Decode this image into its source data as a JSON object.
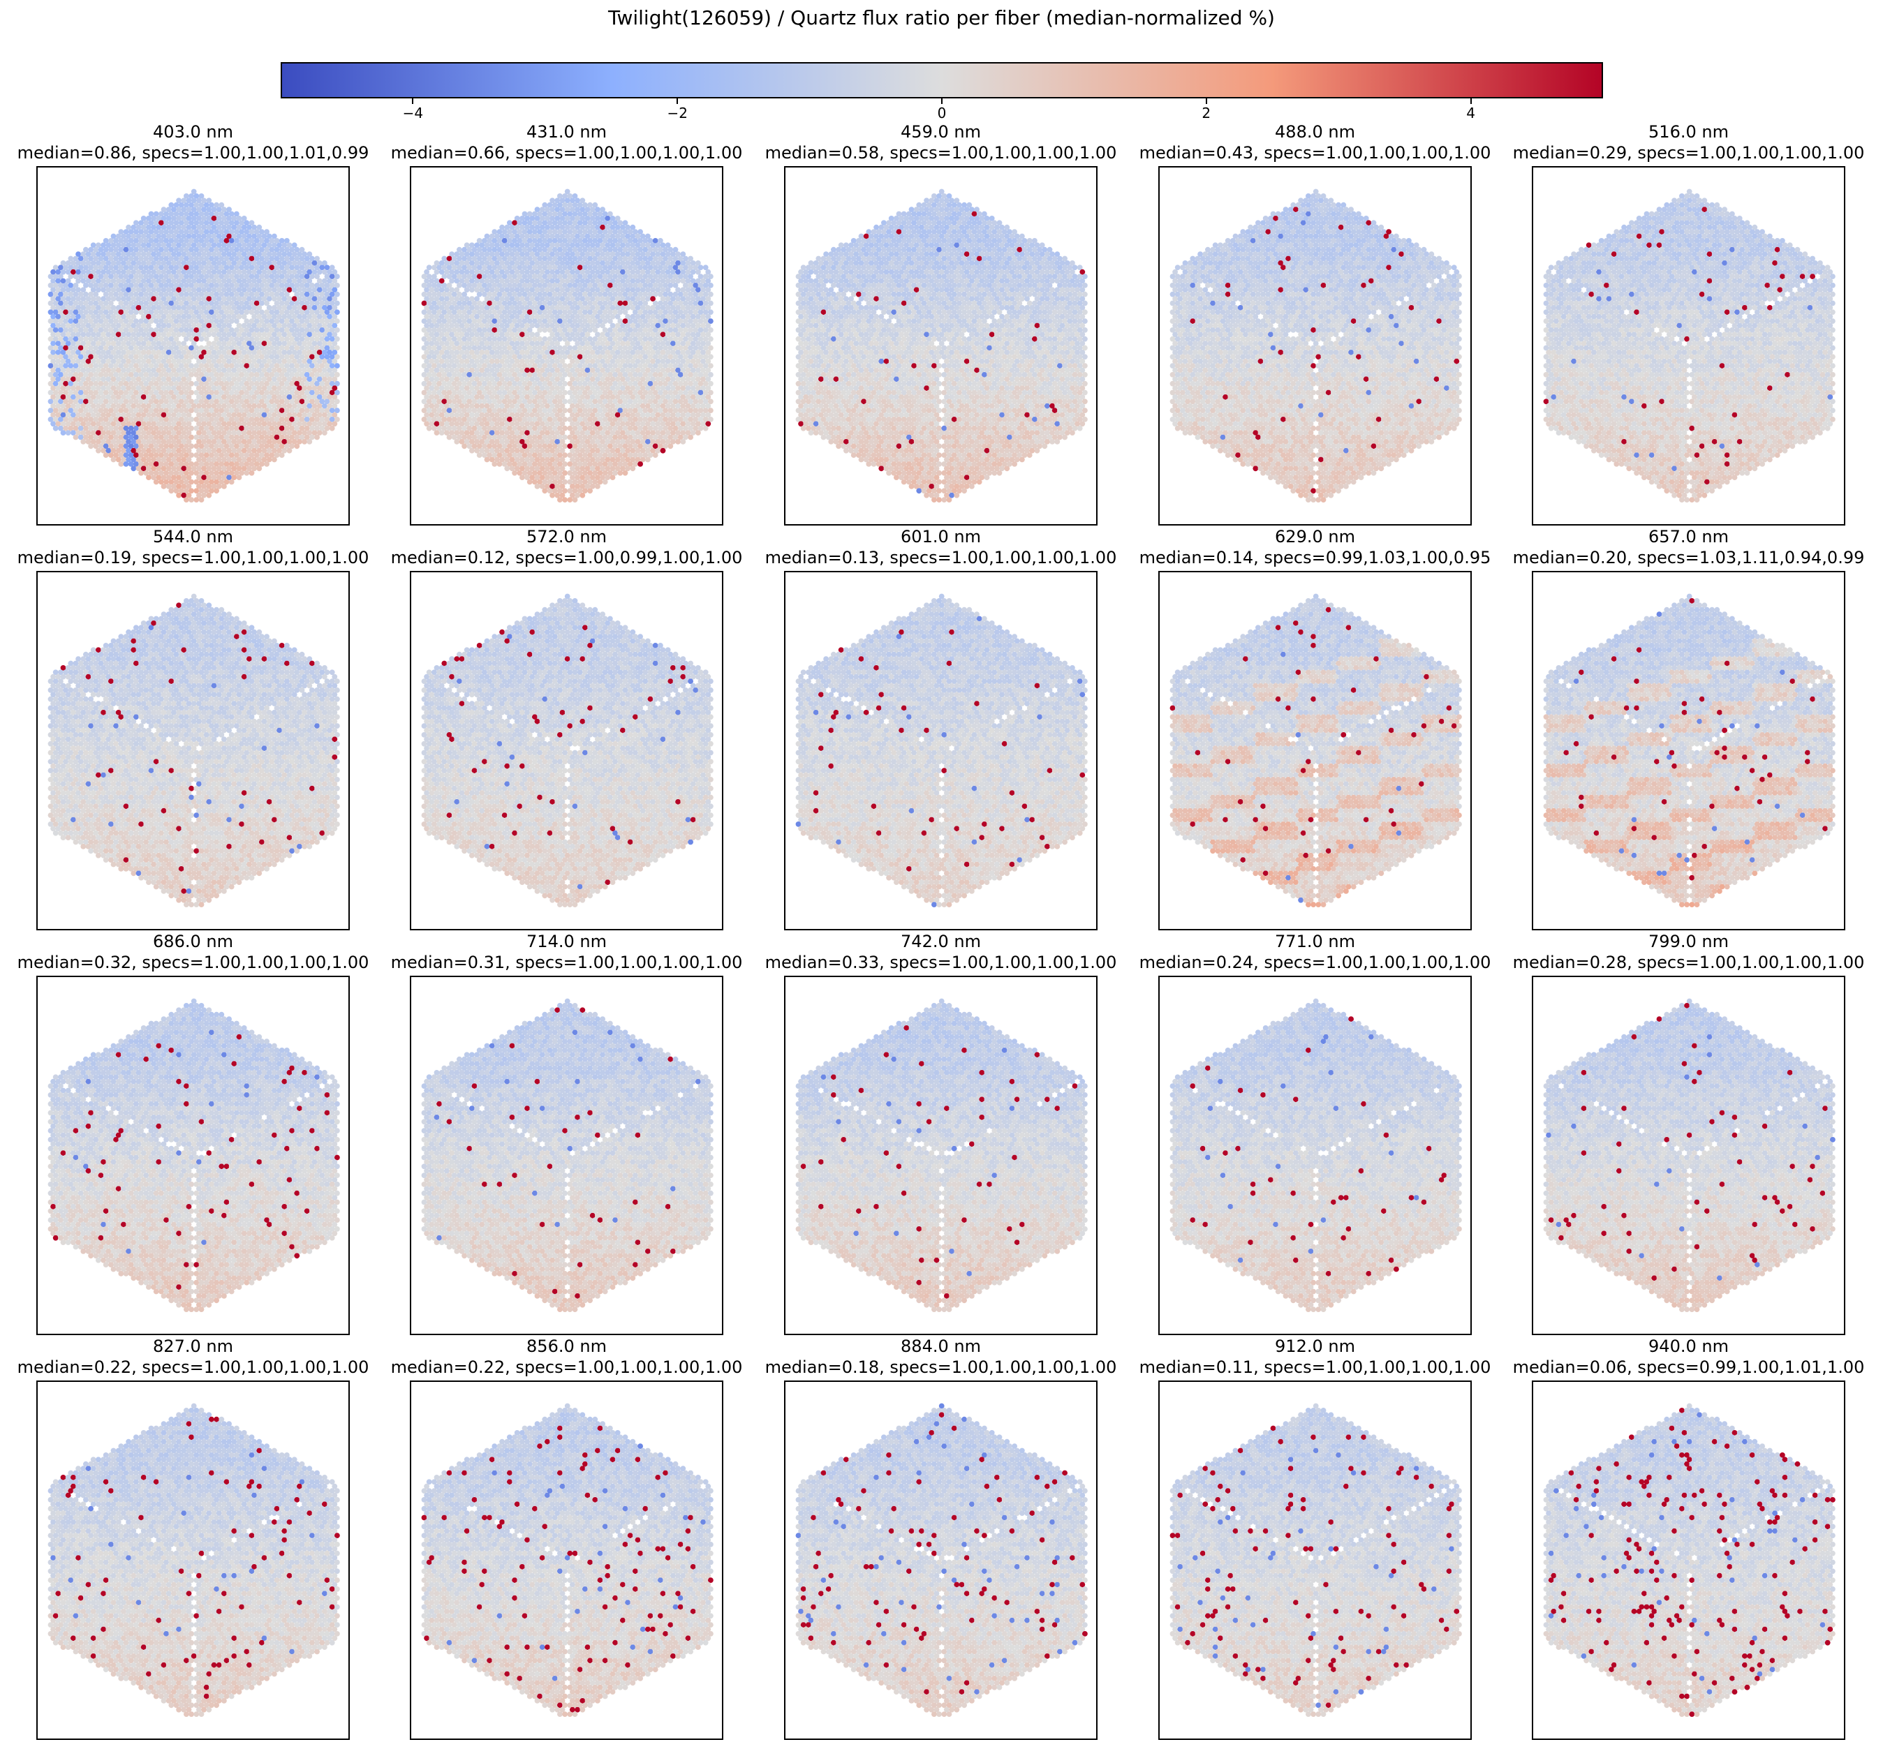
{
  "title": "Twilight(126059) / Quartz flux ratio per fiber (median-normalized %)",
  "colorbar": {
    "cmap": "coolwarm",
    "vmin": -5,
    "vmax": 5,
    "colors": [
      "#3b4cc0",
      "#8db0fe",
      "#dddddd",
      "#f49a7b",
      "#b40426"
    ],
    "ticks": [
      -4,
      -2,
      0,
      2,
      4
    ],
    "tick_labels": [
      "−4",
      "−2",
      "0",
      "2",
      "4"
    ]
  },
  "chart_data": {
    "type": "heatmap",
    "layout": "4 rows x 5 columns of hexagonal IFU fiber maps",
    "panels": [
      {
        "wavelength_label": "403.0 nm",
        "median": 0.86,
        "specs": [
          1.0,
          1.0,
          1.01,
          0.99
        ],
        "stats_label": "median=0.86, specs=1.00,1.00,1.01,0.99"
      },
      {
        "wavelength_label": "431.0 nm",
        "median": 0.66,
        "specs": [
          1.0,
          1.0,
          1.0,
          1.0
        ],
        "stats_label": "median=0.66, specs=1.00,1.00,1.00,1.00"
      },
      {
        "wavelength_label": "459.0 nm",
        "median": 0.58,
        "specs": [
          1.0,
          1.0,
          1.0,
          1.0
        ],
        "stats_label": "median=0.58, specs=1.00,1.00,1.00,1.00"
      },
      {
        "wavelength_label": "488.0 nm",
        "median": 0.43,
        "specs": [
          1.0,
          1.0,
          1.0,
          1.0
        ],
        "stats_label": "median=0.43, specs=1.00,1.00,1.00,1.00"
      },
      {
        "wavelength_label": "516.0 nm",
        "median": 0.29,
        "specs": [
          1.0,
          1.0,
          1.0,
          1.0
        ],
        "stats_label": "median=0.29, specs=1.00,1.00,1.00,1.00"
      },
      {
        "wavelength_label": "544.0 nm",
        "median": 0.19,
        "specs": [
          1.0,
          1.0,
          1.0,
          1.0
        ],
        "stats_label": "median=0.19, specs=1.00,1.00,1.00,1.00"
      },
      {
        "wavelength_label": "572.0 nm",
        "median": 0.12,
        "specs": [
          1.0,
          0.99,
          1.0,
          1.0
        ],
        "stats_label": "median=0.12, specs=1.00,0.99,1.00,1.00"
      },
      {
        "wavelength_label": "601.0 nm",
        "median": 0.13,
        "specs": [
          1.0,
          1.0,
          1.0,
          1.0
        ],
        "stats_label": "median=0.13, specs=1.00,1.00,1.00,1.00"
      },
      {
        "wavelength_label": "629.0 nm",
        "median": 0.14,
        "specs": [
          0.99,
          1.03,
          1.0,
          0.95
        ],
        "stats_label": "median=0.14, specs=0.99,1.03,1.00,0.95"
      },
      {
        "wavelength_label": "657.0 nm",
        "median": 0.2,
        "specs": [
          1.03,
          1.11,
          0.94,
          0.99
        ],
        "stats_label": "median=0.20, specs=1.03,1.11,0.94,0.99"
      },
      {
        "wavelength_label": "686.0 nm",
        "median": 0.32,
        "specs": [
          1.0,
          1.0,
          1.0,
          1.0
        ],
        "stats_label": "median=0.32, specs=1.00,1.00,1.00,1.00"
      },
      {
        "wavelength_label": "714.0 nm",
        "median": 0.31,
        "specs": [
          1.0,
          1.0,
          1.0,
          1.0
        ],
        "stats_label": "median=0.31, specs=1.00,1.00,1.00,1.00"
      },
      {
        "wavelength_label": "742.0 nm",
        "median": 0.33,
        "specs": [
          1.0,
          1.0,
          1.0,
          1.0
        ],
        "stats_label": "median=0.33, specs=1.00,1.00,1.00,1.00"
      },
      {
        "wavelength_label": "771.0 nm",
        "median": 0.24,
        "specs": [
          1.0,
          1.0,
          1.0,
          1.0
        ],
        "stats_label": "median=0.24, specs=1.00,1.00,1.00,1.00"
      },
      {
        "wavelength_label": "799.0 nm",
        "median": 0.28,
        "specs": [
          1.0,
          1.0,
          1.0,
          1.0
        ],
        "stats_label": "median=0.28, specs=1.00,1.00,1.00,1.00"
      },
      {
        "wavelength_label": "827.0 nm",
        "median": 0.22,
        "specs": [
          1.0,
          1.0,
          1.0,
          1.0
        ],
        "stats_label": "median=0.22, specs=1.00,1.00,1.00,1.00"
      },
      {
        "wavelength_label": "856.0 nm",
        "median": 0.22,
        "specs": [
          1.0,
          1.0,
          1.0,
          1.0
        ],
        "stats_label": "median=0.22, specs=1.00,1.00,1.00,1.00"
      },
      {
        "wavelength_label": "884.0 nm",
        "median": 0.18,
        "specs": [
          1.0,
          1.0,
          1.0,
          1.0
        ],
        "stats_label": "median=0.18, specs=1.00,1.00,1.00,1.00"
      },
      {
        "wavelength_label": "912.0 nm",
        "median": 0.11,
        "specs": [
          1.0,
          1.0,
          1.0,
          1.0
        ],
        "stats_label": "median=0.11, specs=1.00,1.00,1.00,1.00"
      },
      {
        "wavelength_label": "940.0 nm",
        "median": 0.06,
        "specs": [
          0.99,
          1.0,
          1.01,
          1.0
        ],
        "stats_label": "median=0.06, specs=0.99,1.00,1.01,1.00"
      }
    ]
  }
}
